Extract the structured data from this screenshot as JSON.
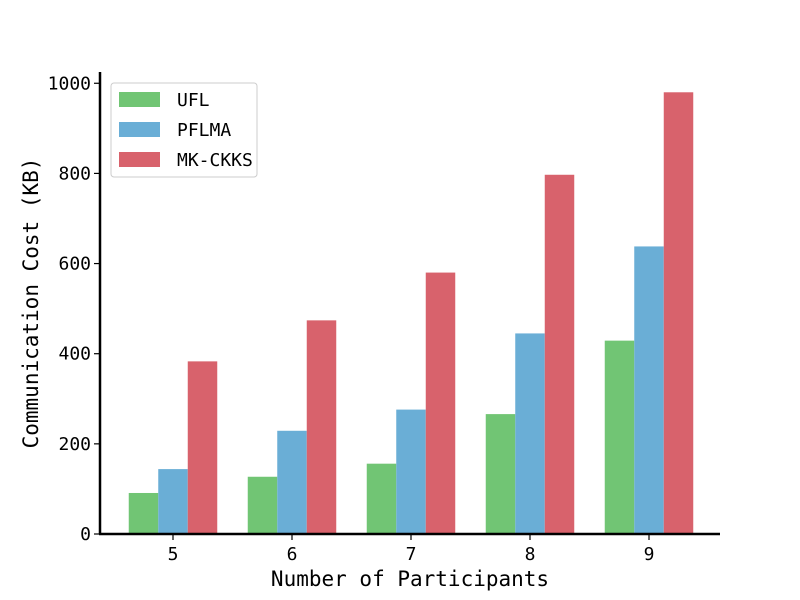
{
  "chart_data": {
    "type": "bar",
    "title": "",
    "xlabel": "Number of Participants",
    "ylabel": "Communication Cost (KB)",
    "categories": [
      "5",
      "6",
      "7",
      "8",
      "9"
    ],
    "ylim": [
      0,
      1025
    ],
    "yticks": [
      0,
      200,
      400,
      600,
      800,
      1000
    ],
    "grid": false,
    "legend_position": "top-left",
    "series": [
      {
        "name": "UFL",
        "color": "#71c574",
        "values": [
          91,
          127,
          156,
          266,
          429
        ]
      },
      {
        "name": "PFLMA",
        "color": "#6aaed6",
        "values": [
          144,
          229,
          276,
          445,
          638
        ]
      },
      {
        "name": "MK-CKKS",
        "color": "#d8626c",
        "values": [
          383,
          474,
          580,
          797,
          980
        ]
      }
    ]
  }
}
